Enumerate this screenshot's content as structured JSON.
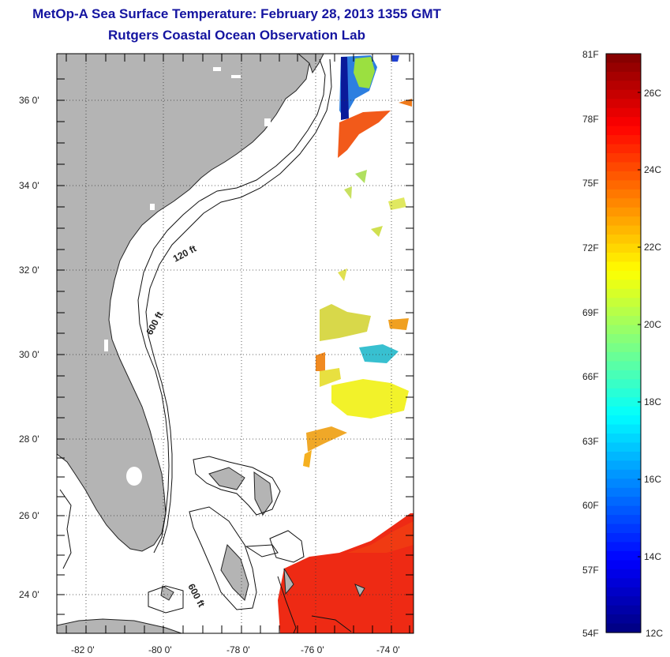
{
  "header": {
    "title": "MetOp-A Sea Surface Temperature:  February 28, 2013 1355 GMT",
    "subtitle": "Rutgers Coastal Ocean Observation Lab"
  },
  "map": {
    "lat_labels": [
      "36 0'",
      "34 0'",
      "32 0'",
      "30 0'",
      "28 0'",
      "26 0'",
      "24 0'"
    ],
    "lon_labels": [
      "-82 0'",
      "-80 0'",
      "-78 0'",
      "-76 0'",
      "-74 0'"
    ],
    "contour_labels": [
      "120 ft",
      "600 ft",
      "600 ft"
    ],
    "land_color": "#b4b4b4",
    "region": "US Southeast coast, Florida and Bahamas"
  },
  "colorbar": {
    "fahrenheit_labels": [
      "81F",
      "78F",
      "75F",
      "72F",
      "69F",
      "66F",
      "63F",
      "60F",
      "57F",
      "54F"
    ],
    "celsius_labels": [
      "26C",
      "24C",
      "22C",
      "20C",
      "18C",
      "16C",
      "14C",
      "12C"
    ],
    "colormap": "jet",
    "range_c": [
      12,
      27
    ]
  }
}
